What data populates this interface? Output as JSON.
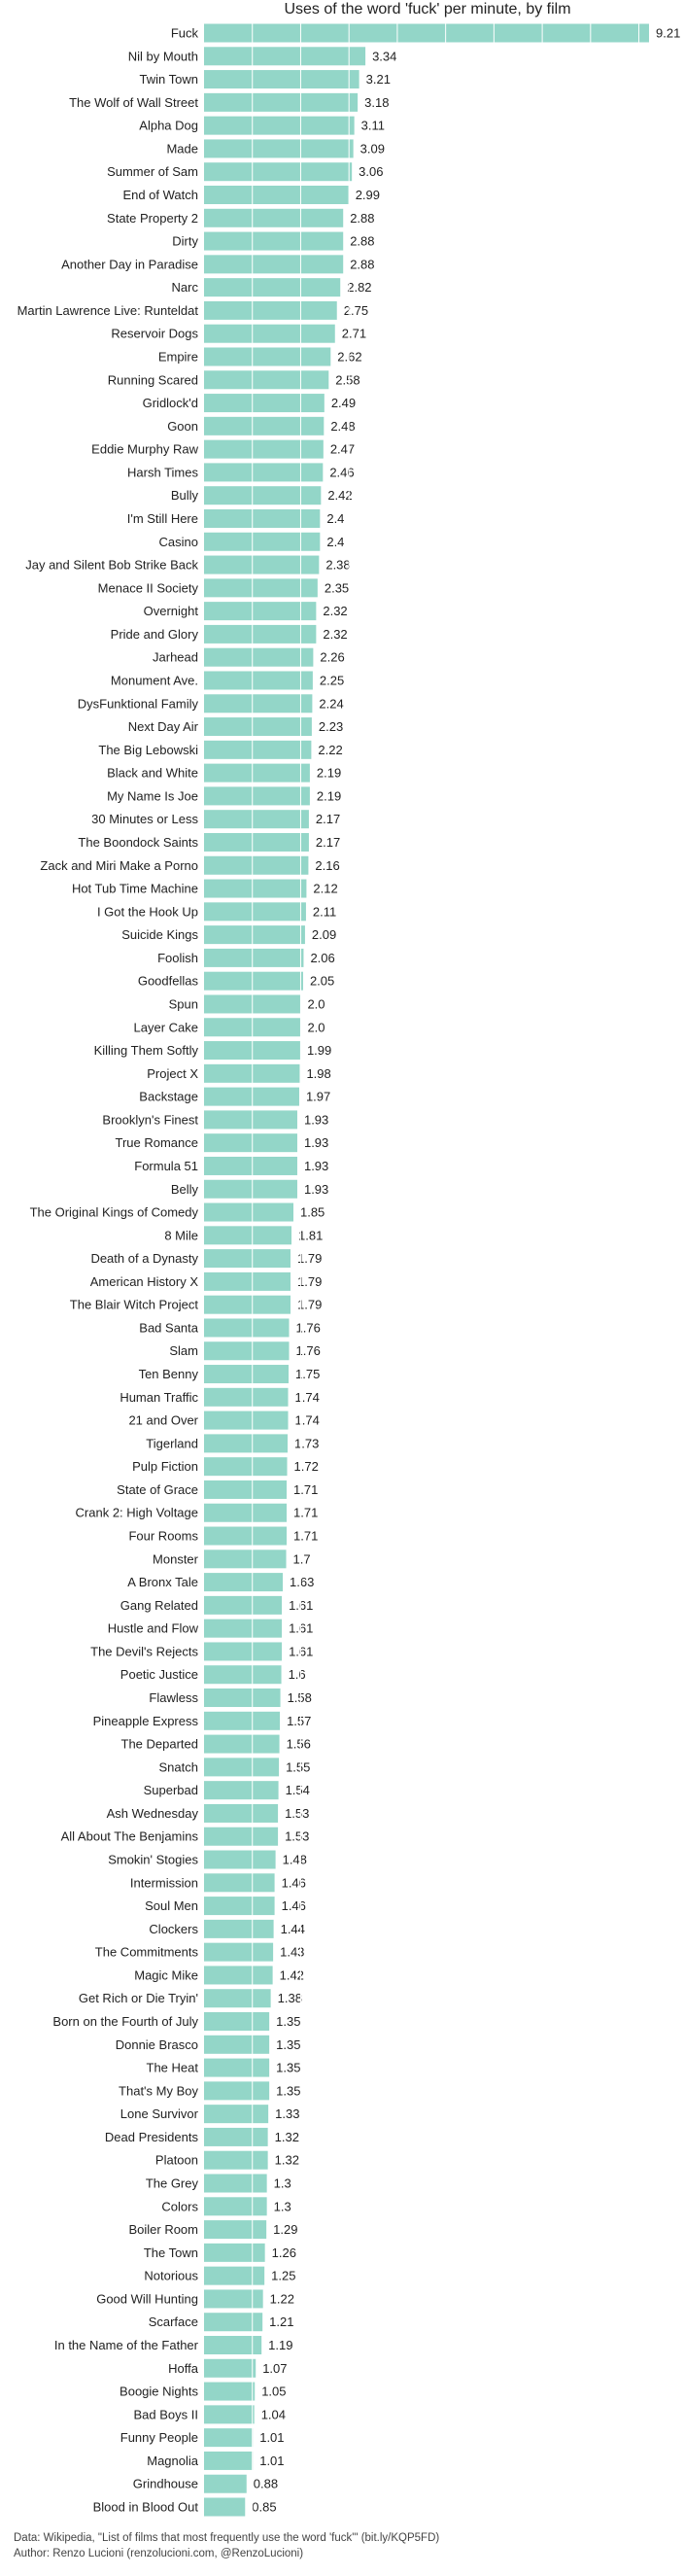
{
  "chart_data": {
    "type": "bar",
    "orientation": "horizontal",
    "title": "Uses of the word 'fuck' per minute, by film",
    "bar_color": "#93d6c8",
    "grid_color": "#ffffff",
    "categories": [
      "Fuck",
      "Nil by Mouth",
      "Twin Town",
      "The Wolf of Wall Street",
      "Alpha Dog",
      "Made",
      "Summer of Sam",
      "End of Watch",
      "State Property 2",
      "Dirty",
      "Another Day in Paradise",
      "Narc",
      "Martin Lawrence Live: Runteldat",
      "Reservoir Dogs",
      "Empire",
      "Running Scared",
      "Gridlock'd",
      "Goon",
      "Eddie Murphy Raw",
      "Harsh Times",
      "Bully",
      "I'm Still Here",
      "Casino",
      "Jay and Silent Bob Strike Back",
      "Menace II Society",
      "Overnight",
      "Pride and Glory",
      "Jarhead",
      "Monument Ave.",
      "DysFunktional Family",
      "Next Day Air",
      "The Big Lebowski",
      "Black and White",
      "My Name Is Joe",
      "30 Minutes or Less",
      "The Boondock Saints",
      "Zack and Miri Make a Porno",
      "Hot Tub Time Machine",
      "I Got the Hook Up",
      "Suicide Kings",
      "Foolish",
      "Goodfellas",
      "Spun",
      "Layer Cake",
      "Killing Them Softly",
      "Project X",
      "Backstage",
      "Brooklyn's Finest",
      "True Romance",
      "Formula 51",
      "Belly",
      "The Original Kings of Comedy",
      "8 Mile",
      "Death of a Dynasty",
      "American History X",
      "The Blair Witch Project",
      "Bad Santa",
      "Slam",
      "Ten Benny",
      "Human Traffic",
      "21 and Over",
      "Tigerland",
      "Pulp Fiction",
      "State of Grace",
      "Crank 2: High Voltage",
      "Four Rooms",
      "Monster",
      "A Bronx Tale",
      "Gang Related",
      "Hustle and Flow",
      "The Devil's Rejects",
      "Poetic Justice",
      "Flawless",
      "Pineapple Express",
      "The Departed",
      "Snatch",
      "Superbad",
      "Ash Wednesday",
      "All About The Benjamins",
      "Smokin' Stogies",
      "Intermission",
      "Soul Men",
      "Clockers",
      "The Commitments",
      "Magic Mike",
      "Get Rich or Die Tryin'",
      "Born on the Fourth of July",
      "Donnie Brasco",
      "The Heat",
      "That's My Boy",
      "Lone Survivor",
      "Dead Presidents",
      "Platoon",
      "The Grey",
      "Colors",
      "Boiler Room",
      "The Town",
      "Notorious",
      "Good Will Hunting",
      "Scarface",
      "In the Name of the Father",
      "Hoffa",
      "Boogie Nights",
      "Bad Boys II",
      "Funny People",
      "Magnolia",
      "Grindhouse",
      "Blood in Blood Out"
    ],
    "values": [
      9.21,
      3.34,
      3.21,
      3.18,
      3.11,
      3.09,
      3.06,
      2.99,
      2.88,
      2.88,
      2.88,
      2.82,
      2.75,
      2.71,
      2.62,
      2.58,
      2.49,
      2.48,
      2.47,
      2.46,
      2.42,
      2.4,
      2.4,
      2.38,
      2.35,
      2.32,
      2.32,
      2.26,
      2.25,
      2.24,
      2.23,
      2.22,
      2.19,
      2.19,
      2.17,
      2.17,
      2.16,
      2.12,
      2.11,
      2.09,
      2.06,
      2.05,
      2.0,
      2.0,
      1.99,
      1.98,
      1.97,
      1.93,
      1.93,
      1.93,
      1.93,
      1.85,
      1.81,
      1.79,
      1.79,
      1.79,
      1.76,
      1.76,
      1.75,
      1.74,
      1.74,
      1.73,
      1.72,
      1.71,
      1.71,
      1.71,
      1.7,
      1.63,
      1.61,
      1.61,
      1.61,
      1.6,
      1.58,
      1.57,
      1.56,
      1.55,
      1.54,
      1.53,
      1.53,
      1.48,
      1.46,
      1.46,
      1.44,
      1.43,
      1.42,
      1.38,
      1.35,
      1.35,
      1.35,
      1.35,
      1.33,
      1.32,
      1.32,
      1.3,
      1.3,
      1.29,
      1.26,
      1.25,
      1.22,
      1.21,
      1.19,
      1.07,
      1.05,
      1.04,
      1.01,
      1.01,
      0.88,
      0.85
    ],
    "value_labels": [
      "9.21",
      "3.34",
      "3.21",
      "3.18",
      "3.11",
      "3.09",
      "3.06",
      "2.99",
      "2.88",
      "2.88",
      "2.88",
      "2.82",
      "2.75",
      "2.71",
      "2.62",
      "2.58",
      "2.49",
      "2.48",
      "2.47",
      "2.46",
      "2.42",
      "2.4",
      "2.4",
      "2.38",
      "2.35",
      "2.32",
      "2.32",
      "2.26",
      "2.25",
      "2.24",
      "2.23",
      "2.22",
      "2.19",
      "2.19",
      "2.17",
      "2.17",
      "2.16",
      "2.12",
      "2.11",
      "2.09",
      "2.06",
      "2.05",
      "2.0",
      "2.0",
      "1.99",
      "1.98",
      "1.97",
      "1.93",
      "1.93",
      "1.93",
      "1.93",
      "1.85",
      "1.81",
      "1.79",
      "1.79",
      "1.79",
      "1.76",
      "1.76",
      "1.75",
      "1.74",
      "1.74",
      "1.73",
      "1.72",
      "1.71",
      "1.71",
      "1.71",
      "1.7",
      "1.63",
      "1.61",
      "1.61",
      "1.61",
      "1.6",
      "1.58",
      "1.57",
      "1.56",
      "1.55",
      "1.54",
      "1.53",
      "1.53",
      "1.48",
      "1.46",
      "1.46",
      "1.44",
      "1.43",
      "1.42",
      "1.38",
      "1.35",
      "1.35",
      "1.35",
      "1.35",
      "1.33",
      "1.32",
      "1.32",
      "1.3",
      "1.3",
      "1.29",
      "1.26",
      "1.25",
      "1.22",
      "1.21",
      "1.19",
      "1.07",
      "1.05",
      "1.04",
      "1.01",
      "1.01",
      "0.88",
      "0.85"
    ],
    "xlabel": "",
    "ylabel": "",
    "xlim": [
      0,
      9.21
    ],
    "grid": true,
    "legend": "none"
  },
  "footer": {
    "source": "Data: Wikipedia, \"List of films that most frequently use the word 'fuck'\" (bit.ly/KQP5FD)",
    "author": "Author: Renzo Lucioni (renzolucioni.com, @RenzoLucioni)"
  }
}
